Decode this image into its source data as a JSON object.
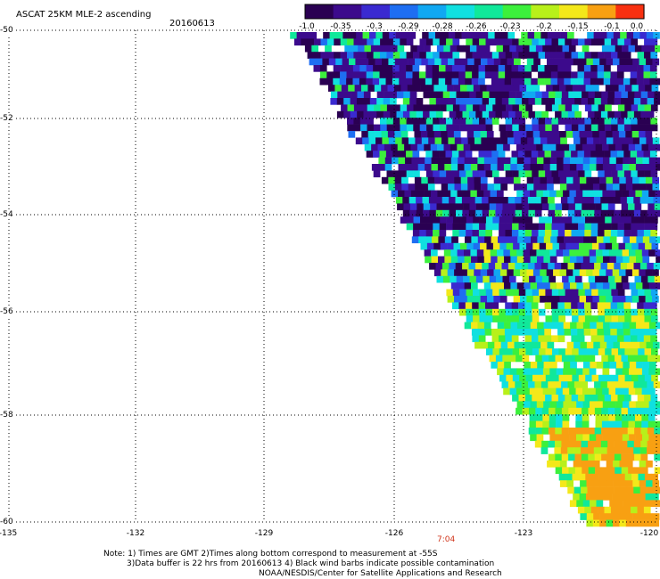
{
  "title": "ASCAT 25KM MLE-2 ascending",
  "date": "20160613",
  "colorbar": {
    "labels": [
      "-1.0",
      "-0.35",
      "-0.3",
      "-0.29",
      "-0.28",
      "-0.26",
      "-0.23",
      "-0.2",
      "-0.15",
      "-0.1",
      "0.0"
    ],
    "colors": [
      "#2a0052",
      "#3c0a8c",
      "#3a2ad0",
      "#1e6ef2",
      "#10a8f2",
      "#10e0e0",
      "#10e89a",
      "#3cf03c",
      "#b8f01a",
      "#f4e81a",
      "#f8a012",
      "#f83010"
    ]
  },
  "axes": {
    "lat_labels": [
      "-50",
      "-52",
      "-54",
      "-56",
      "-58",
      "-60"
    ],
    "lon_labels": [
      "-135",
      "-132",
      "-129",
      "-126",
      "-123",
      "-120"
    ]
  },
  "time_label": "7:04",
  "notes": [
    "Note: 1) Times are GMT 2)Times along bottom correspond to measurement at -55S",
    "3)Data buffer is 22 hrs from 20160613 4) Black wind barbs indicate possible contamination",
    "NOAA/NESDIS/Center for Satellite Applications and Research"
  ]
}
